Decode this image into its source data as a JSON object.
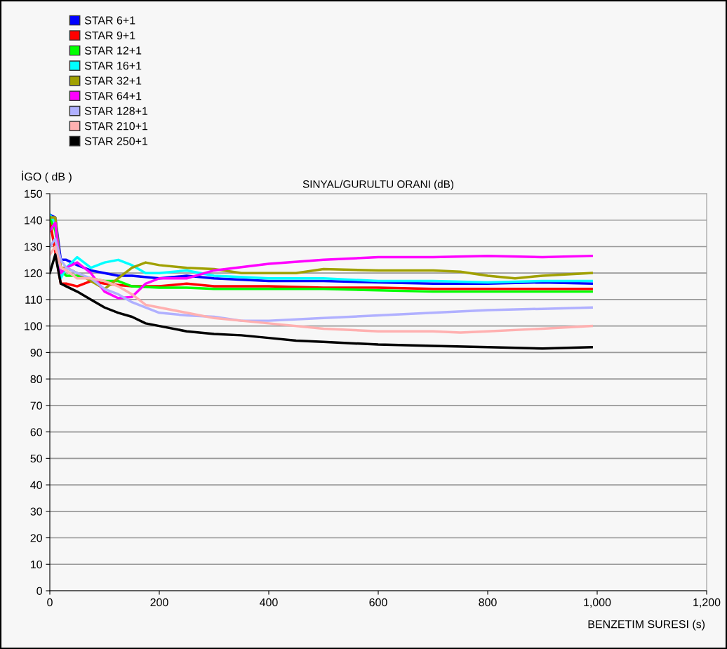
{
  "chart_data": {
    "type": "line",
    "title": "SINYAL/GURULTU ORANI (dB)",
    "xlabel": "BENZETIM SURESI (s)",
    "ylabel": "İGO ( dB )",
    "xlim": [
      0,
      1200
    ],
    "xticks": [
      0,
      200,
      400,
      600,
      800,
      {
        "value": 1000,
        "label": "1,000"
      },
      {
        "value": 1200,
        "label": "1,200"
      }
    ],
    "ylim": [
      0,
      150
    ],
    "yticks": [
      0,
      10,
      20,
      30,
      40,
      50,
      60,
      70,
      80,
      90,
      100,
      110,
      120,
      130,
      140,
      150
    ],
    "grid": "y",
    "legend": "top left",
    "marker": "none",
    "line_style": "solid",
    "series": [
      {
        "name": "STAR 6+1",
        "color": "#0000ff",
        "x": [
          0,
          10,
          20,
          30,
          50,
          75,
          100,
          125,
          150,
          200,
          250,
          300,
          400,
          500,
          600,
          700,
          800,
          900,
          990
        ],
        "values": [
          142,
          141,
          125,
          125,
          123,
          121,
          120,
          119,
          119,
          118,
          119,
          118,
          117,
          117,
          116.5,
          116,
          116,
          116.5,
          116
        ]
      },
      {
        "name": "STAR 9+1",
        "color": "#ff0000",
        "x": [
          0,
          10,
          20,
          30,
          50,
          75,
          100,
          125,
          150,
          200,
          250,
          300,
          400,
          500,
          600,
          700,
          800,
          900,
          990
        ],
        "values": [
          140,
          128,
          116,
          116,
          115,
          117,
          116,
          115.5,
          115,
          115,
          116,
          115,
          115,
          114.5,
          114.5,
          114,
          114,
          114,
          114
        ]
      },
      {
        "name": "STAR 12+1",
        "color": "#00ff00",
        "x": [
          0,
          10,
          20,
          30,
          50,
          75,
          100,
          125,
          150,
          200,
          250,
          300,
          400,
          500,
          600,
          700,
          800,
          900,
          990
        ],
        "values": [
          141,
          136,
          121,
          119,
          119,
          118,
          117,
          117,
          115,
          114.5,
          114.5,
          114,
          114,
          114,
          113.5,
          113,
          113,
          113,
          113
        ]
      },
      {
        "name": "STAR 16+1",
        "color": "#00ffff",
        "x": [
          0,
          10,
          20,
          30,
          50,
          75,
          100,
          125,
          150,
          175,
          200,
          250,
          300,
          400,
          500,
          600,
          700,
          800,
          900,
          990
        ],
        "values": [
          142,
          139,
          118,
          122,
          126,
          122,
          124,
          125,
          123,
          120,
          120,
          121,
          119,
          118,
          118,
          117,
          117,
          116.5,
          117,
          117
        ]
      },
      {
        "name": "STAR 32+1",
        "color": "#a0a000",
        "x": [
          0,
          10,
          20,
          30,
          50,
          75,
          100,
          125,
          150,
          175,
          200,
          250,
          300,
          350,
          400,
          450,
          500,
          600,
          700,
          750,
          800,
          850,
          900,
          990
        ],
        "values": [
          141,
          141,
          122,
          122,
          120,
          117,
          114,
          118,
          122,
          124,
          123,
          122,
          121.5,
          120,
          120,
          120,
          121.5,
          121,
          121,
          120.5,
          119,
          118,
          119,
          120
        ]
      },
      {
        "name": "STAR 64+1",
        "color": "#ff00ff",
        "x": [
          0,
          10,
          20,
          30,
          50,
          75,
          100,
          125,
          150,
          175,
          200,
          250,
          300,
          400,
          500,
          600,
          700,
          800,
          900,
          990
        ],
        "values": [
          136,
          139,
          120,
          122,
          124,
          120,
          113,
          110.5,
          111,
          116,
          118,
          118,
          121,
          123.5,
          125,
          126,
          126,
          126.5,
          126,
          126.5
        ]
      },
      {
        "name": "STAR 128+1",
        "color": "#b0b0ff",
        "x": [
          0,
          10,
          20,
          30,
          50,
          75,
          100,
          125,
          150,
          200,
          250,
          300,
          350,
          400,
          500,
          600,
          700,
          800,
          900,
          990
        ],
        "values": [
          130,
          133,
          125,
          122,
          120,
          118,
          114,
          112,
          109,
          105,
          104,
          103.5,
          102,
          102,
          103,
          104,
          105,
          106,
          106.5,
          107
        ]
      },
      {
        "name": "STAR 210+1",
        "color": "#ffb0b0",
        "x": [
          0,
          10,
          20,
          30,
          50,
          75,
          100,
          125,
          150,
          175,
          200,
          250,
          300,
          350,
          400,
          500,
          600,
          700,
          750,
          800,
          900,
          990
        ],
        "values": [
          127,
          130,
          122,
          121,
          118,
          118,
          117,
          115,
          112,
          108,
          107,
          105,
          103,
          102,
          101,
          99,
          98,
          98,
          97.5,
          98,
          99,
          100
        ]
      },
      {
        "name": "STAR 250+1",
        "color": "#000000",
        "x": [
          0,
          10,
          20,
          30,
          50,
          75,
          100,
          125,
          150,
          175,
          200,
          250,
          300,
          350,
          400,
          450,
          500,
          600,
          700,
          800,
          900,
          990
        ],
        "values": [
          120,
          127,
          116,
          115,
          113,
          110,
          107,
          105,
          103.5,
          101,
          100,
          98,
          97,
          96.5,
          95.5,
          94.5,
          94,
          93,
          92.5,
          92,
          91.5,
          92
        ]
      }
    ]
  }
}
